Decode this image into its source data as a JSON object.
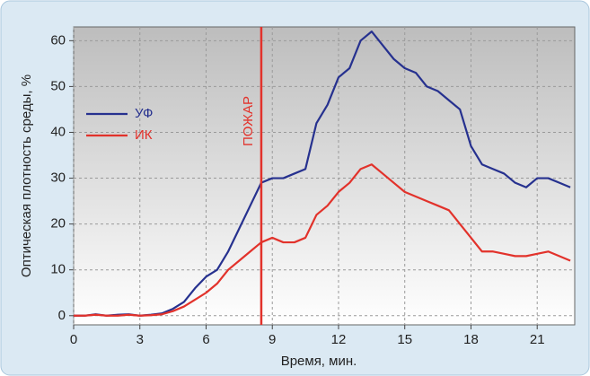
{
  "chart_data": {
    "type": "line",
    "x_label": "Время, мин.",
    "y_label": "Оптическая плотность среды, %",
    "x": [
      0,
      0.5,
      1,
      1.5,
      2,
      2.5,
      3,
      3.5,
      4,
      4.5,
      5,
      5.5,
      6,
      6.5,
      7,
      7.5,
      8,
      8.5,
      9,
      9.5,
      10,
      10.5,
      11,
      11.5,
      12,
      12.5,
      13,
      13.5,
      14,
      14.5,
      15,
      15.5,
      16,
      16.5,
      17,
      17.5,
      18,
      18.5,
      19,
      19.5,
      20,
      20.5,
      21,
      21.5,
      22,
      22.5
    ],
    "series": [
      {
        "name": "УФ",
        "color": "#26318f",
        "values": [
          0,
          0,
          0.3,
          0,
          0.2,
          0.3,
          0,
          0.2,
          0.5,
          1.5,
          3,
          6,
          8.5,
          10,
          14,
          19,
          24,
          29,
          30,
          30,
          31,
          32,
          42,
          46,
          52,
          54,
          60,
          62,
          59,
          56,
          54,
          53,
          50,
          49,
          47,
          45,
          37,
          33,
          32,
          31,
          29,
          28,
          30,
          30,
          29,
          28
        ]
      },
      {
        "name": "ИК",
        "color": "#e2322b",
        "values": [
          0,
          0,
          0.2,
          0,
          0,
          0.2,
          0,
          0.1,
          0.3,
          1,
          2,
          3.5,
          5,
          7,
          10,
          12,
          14,
          16,
          17,
          16,
          16,
          17,
          22,
          24,
          27,
          29,
          32,
          33,
          31,
          29,
          27,
          26,
          25,
          24,
          23,
          20,
          17,
          14,
          14,
          13.5,
          13,
          13,
          13.5,
          14,
          13,
          12
        ]
      }
    ],
    "annotation": {
      "x": 8.5,
      "label": "ПОЖАР",
      "color": "#e2322b"
    },
    "xlim": [
      0,
      22.7
    ],
    "ylim": [
      -2,
      63
    ],
    "xticks": [
      0,
      3,
      6,
      9,
      12,
      15,
      18,
      21
    ],
    "yticks": [
      0,
      10,
      20,
      30,
      40,
      50,
      60
    ],
    "grid": true,
    "legend": "upper-left"
  }
}
